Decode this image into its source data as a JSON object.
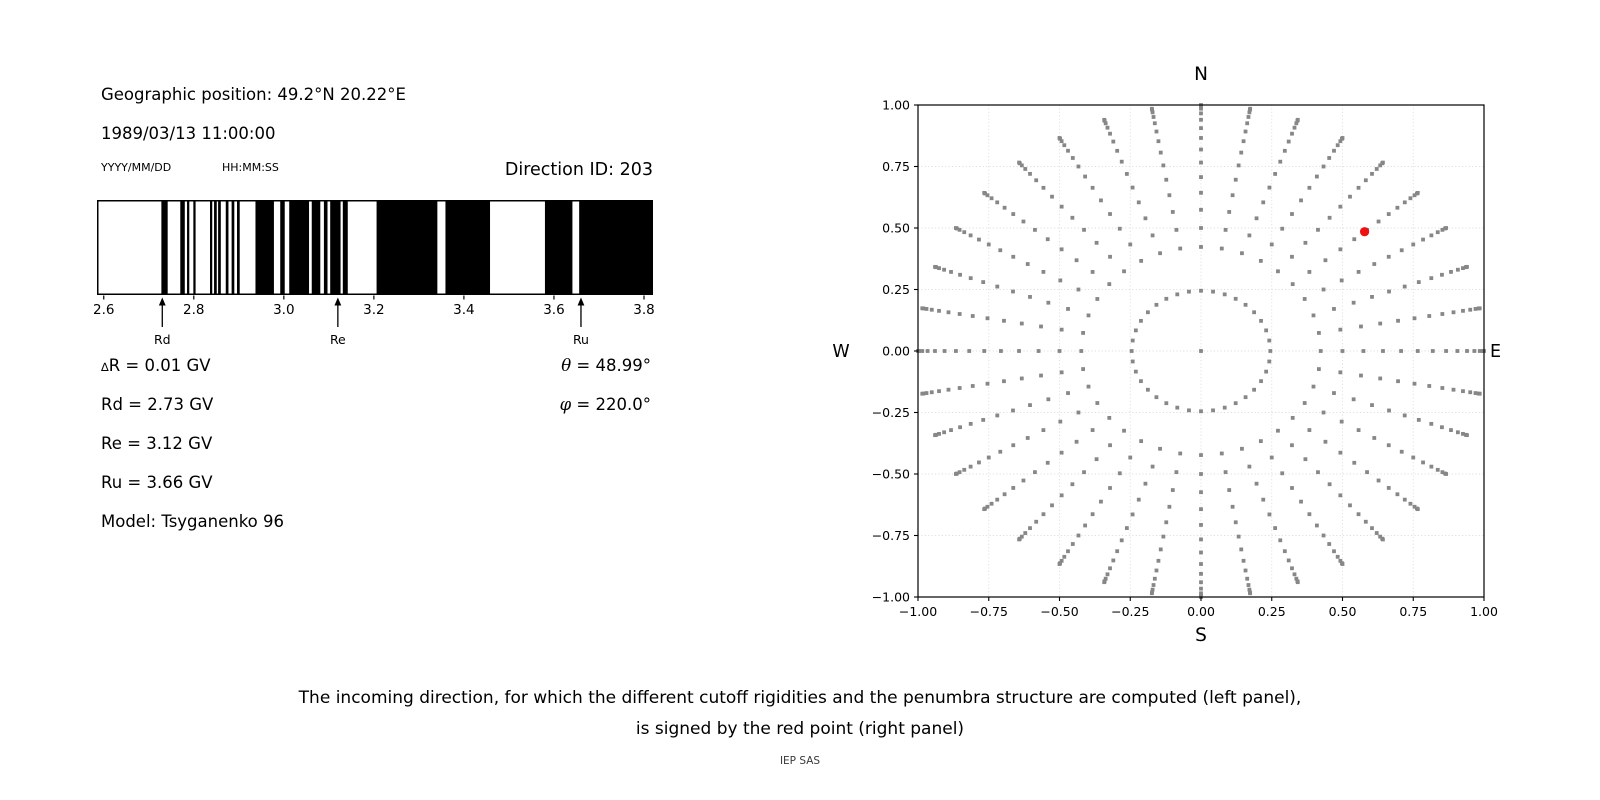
{
  "header": {
    "geographic_position": "Geographic position: 49.2°N 20.22°E",
    "datetime": "1989/03/13 11:00:00",
    "date_format_label": "YYYY/MM/DD",
    "time_format_label": "HH:MM:SS",
    "direction_id": "Direction ID: 203"
  },
  "cutoff_info": {
    "delta_r": "∆R = 0.01 GV",
    "rd": "Rd = 2.73 GV",
    "re": "Re = 3.12 GV",
    "ru": "Ru = 3.66 GV",
    "model": "Model: Tsyganenko 96",
    "theta": "θ = 48.99°",
    "phi": "φ = 220.0°"
  },
  "caption": {
    "line1": "The incoming direction, for which the different cutoff rigidities and the penumbra structure are computed (left panel),",
    "line2": "is signed by the red point (right panel)",
    "credit": "IEP SAS"
  },
  "chart_data": [
    {
      "type": "bar",
      "panel": "penumbra-barcode",
      "description": "Cosmic-ray penumbra structure: black bands = allowed rigidity intervals, white = forbidden",
      "xlim": [
        2.585,
        3.82
      ],
      "xticks": [
        2.6,
        2.8,
        3.0,
        3.2,
        3.4,
        3.6,
        3.8
      ],
      "xtick_decimals": 1,
      "band_color": "#000000",
      "black_bands_gv": [
        [
          2.728,
          2.742
        ],
        [
          2.77,
          2.78
        ],
        [
          2.785,
          2.79
        ],
        [
          2.799,
          2.804
        ],
        [
          2.836,
          2.841
        ],
        [
          2.845,
          2.851
        ],
        [
          2.854,
          2.86
        ],
        [
          2.871,
          2.877
        ],
        [
          2.884,
          2.89
        ],
        [
          2.896,
          2.902
        ],
        [
          2.937,
          2.978
        ],
        [
          2.992,
          3.002
        ],
        [
          3.012,
          3.056
        ],
        [
          3.062,
          3.081
        ],
        [
          3.089,
          3.097
        ],
        [
          3.103,
          3.126
        ],
        [
          3.131,
          3.142
        ],
        [
          3.206,
          3.341
        ],
        [
          3.359,
          3.458
        ],
        [
          3.58,
          3.641
        ],
        [
          3.656,
          3.82
        ]
      ],
      "arrows": [
        {
          "label": "Rd",
          "value_gv": 2.73
        },
        {
          "label": "Re",
          "value_gv": 3.12
        },
        {
          "label": "Ru",
          "value_gv": 3.66
        }
      ]
    },
    {
      "type": "scatter",
      "panel": "direction-map",
      "description": "Grid of incoming directions (r = sin(zenith), azimuth every 10°); red point marks the computed direction",
      "xlim": [
        -1.0,
        1.0
      ],
      "ylim": [
        -1.0,
        1.0
      ],
      "xticks": [
        -1.0,
        -0.75,
        -0.5,
        -0.25,
        0.0,
        0.25,
        0.5,
        0.75,
        1.0
      ],
      "yticks": [
        -1.0,
        -0.75,
        -0.5,
        -0.25,
        0.0,
        0.25,
        0.5,
        0.75,
        1.0
      ],
      "tick_decimals": 2,
      "grid": true,
      "compass_labels": {
        "top": "N",
        "bottom": "S",
        "left": "W",
        "right": "E"
      },
      "spokes": {
        "azimuth_deg_start": 0,
        "azimuth_deg_step": 10,
        "azimuth_count": 36,
        "dot_radii": [
          0.423,
          0.5,
          0.574,
          0.643,
          0.707,
          0.766,
          0.819,
          0.866,
          0.906,
          0.94,
          0.966,
          0.985,
          0.996,
          1.0
        ]
      },
      "inner_ring": {
        "radius": 0.245,
        "dot_count": 36
      },
      "center_dot": [
        0.0,
        0.0
      ],
      "red_point": [
        0.578,
        0.485
      ],
      "dot_color": "#878787",
      "red_color": "#ee1111",
      "grid_color": "#d9d9d9"
    }
  ]
}
